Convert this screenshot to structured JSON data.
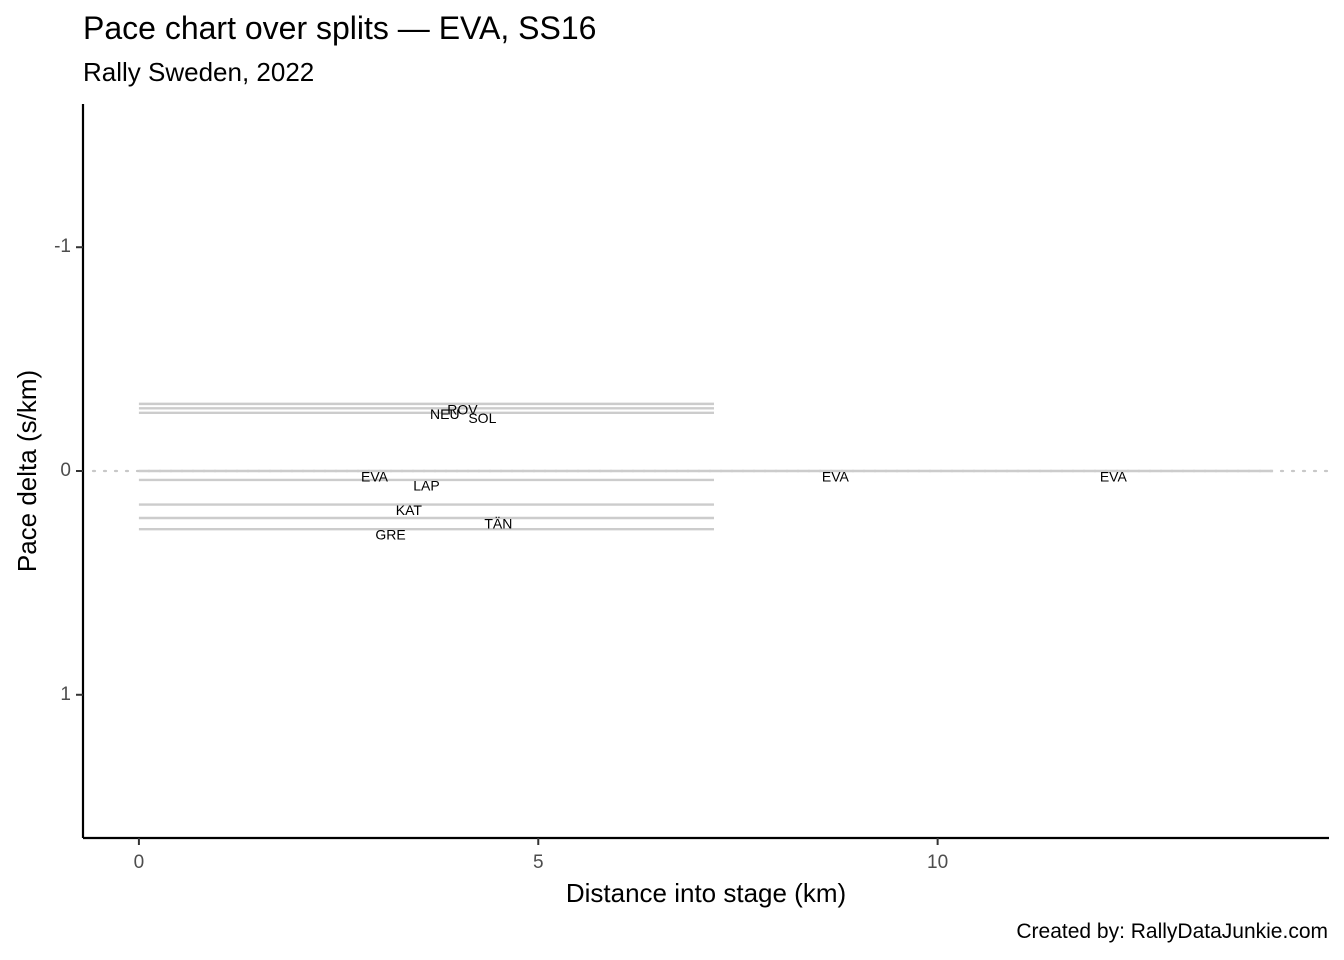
{
  "chart_data": {
    "type": "line",
    "title": "Pace chart over splits — EVA, SS16",
    "subtitle": "Rally Sweden, 2022",
    "caption": "Created by: RallyDataJunkie.com",
    "xlabel": "Distance into stage (km)",
    "ylabel": "Pace delta (s/km)",
    "xlim": [
      -0.7,
      14.9
    ],
    "ylim": [
      1.64,
      -1.64
    ],
    "y_reversed": true,
    "x_ticks": [
      0,
      5,
      10
    ],
    "x_tick_labels": [
      "0",
      "5",
      "10"
    ],
    "y_ticks": [
      -1,
      0,
      1
    ],
    "y_tick_labels": [
      "-1",
      "0",
      "1"
    ],
    "grid": false,
    "reference_line": {
      "y": 0,
      "style": "dotted"
    },
    "series": [
      {
        "name": "ROV",
        "x": [
          0,
          7.2
        ],
        "y": [
          -0.3,
          -0.3
        ],
        "label_x": 4.05,
        "label_y": -0.27
      },
      {
        "name": "NEU",
        "x": [
          0,
          7.2
        ],
        "y": [
          -0.28,
          -0.28
        ],
        "label_x": 3.83,
        "label_y": -0.25
      },
      {
        "name": "SOL",
        "x": [
          0,
          7.2
        ],
        "y": [
          -0.26,
          -0.26
        ],
        "label_x": 4.3,
        "label_y": -0.23
      },
      {
        "name": "EVA",
        "x": [
          0,
          7.2,
          14.2
        ],
        "y": [
          0,
          0,
          0
        ],
        "label_x": 2.95,
        "label_y": 0.03
      },
      {
        "name": "LAP",
        "x": [
          0,
          7.2
        ],
        "y": [
          0.04,
          0.04
        ],
        "label_x": 3.6,
        "label_y": 0.07
      },
      {
        "name": "KAT",
        "x": [
          0,
          7.2
        ],
        "y": [
          0.15,
          0.15
        ],
        "label_x": 3.38,
        "label_y": 0.18
      },
      {
        "name": "TÄN",
        "x": [
          0,
          7.2
        ],
        "y": [
          0.21,
          0.21
        ],
        "label_x": 4.5,
        "label_y": 0.24
      },
      {
        "name": "GRE",
        "x": [
          0,
          7.2
        ],
        "y": [
          0.26,
          0.26
        ],
        "label_x": 3.15,
        "label_y": 0.29
      }
    ],
    "extra_labels": [
      {
        "text": "EVA",
        "x": 8.72,
        "y": 0.03
      },
      {
        "text": "EVA",
        "x": 12.2,
        "y": 0.03
      }
    ]
  }
}
